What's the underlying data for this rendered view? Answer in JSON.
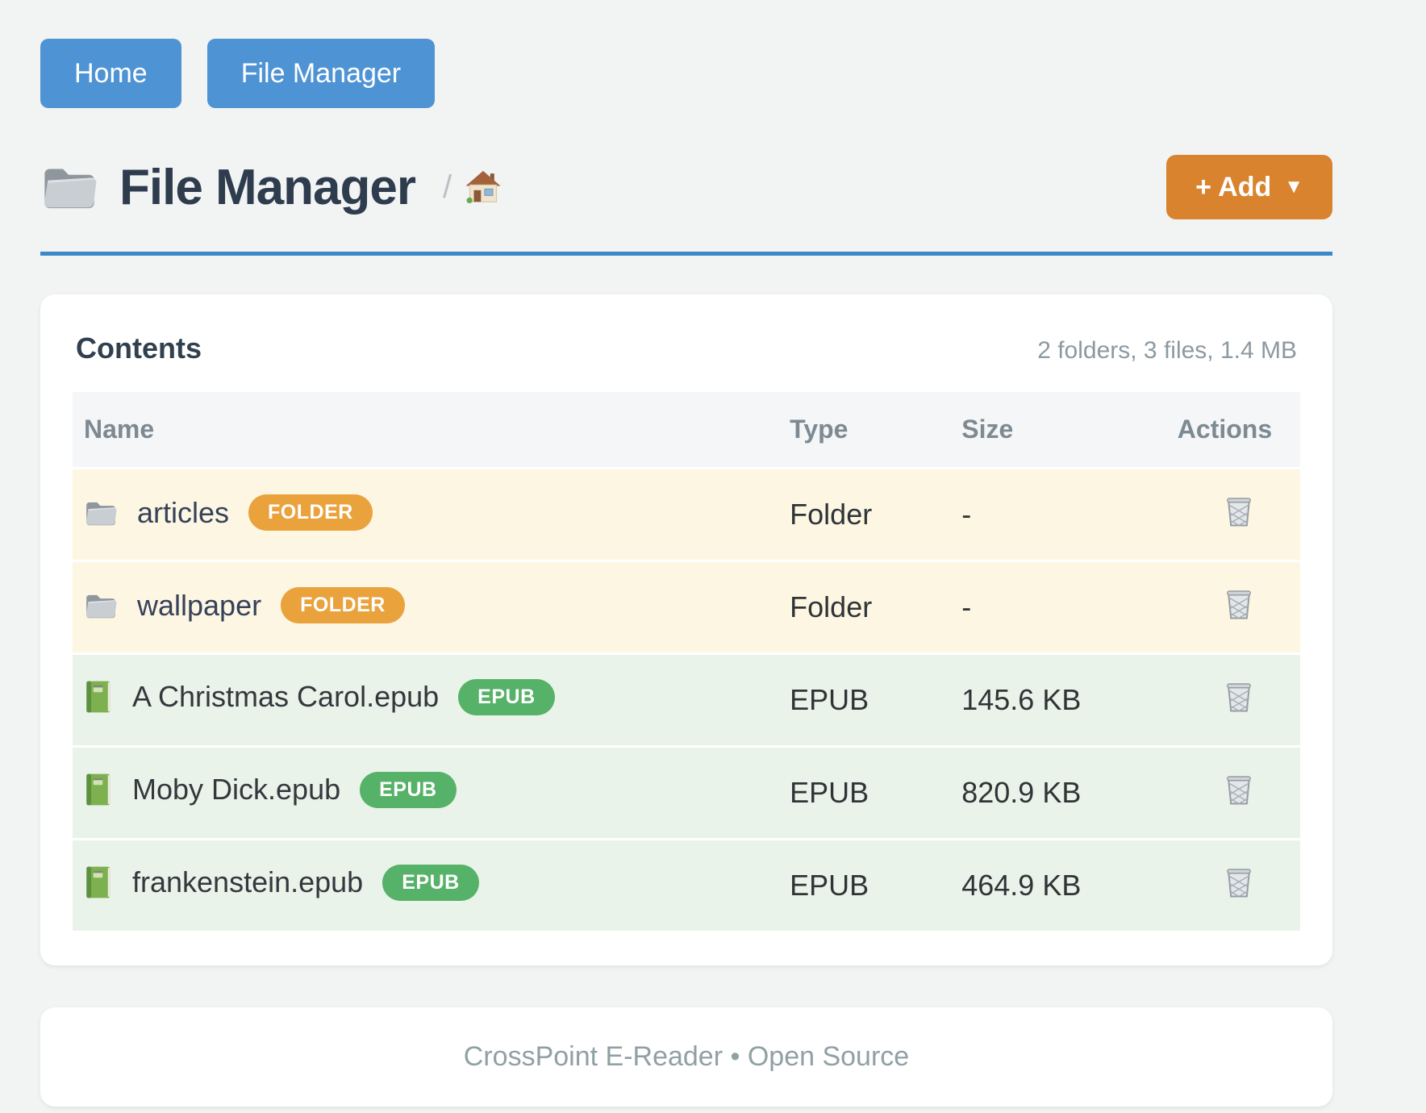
{
  "nav": {
    "buttons": [
      {
        "label": "Home"
      },
      {
        "label": "File Manager"
      }
    ]
  },
  "header": {
    "title": "File Manager",
    "breadcrumb_separator": "/",
    "add_button": {
      "label": "+ Add",
      "caret": "▼"
    }
  },
  "contents": {
    "heading": "Contents",
    "summary": "2 folders, 3 files, 1.4 MB",
    "table": {
      "columns": [
        "Name",
        "Type",
        "Size",
        "Actions"
      ],
      "rows": [
        {
          "name": "articles",
          "kind": "folder",
          "badge": "FOLDER",
          "type": "Folder",
          "size": "-"
        },
        {
          "name": "wallpaper",
          "kind": "folder",
          "badge": "FOLDER",
          "type": "Folder",
          "size": "-"
        },
        {
          "name": "A Christmas Carol.epub",
          "kind": "epub",
          "badge": "EPUB",
          "type": "EPUB",
          "size": "145.6 KB"
        },
        {
          "name": "Moby Dick.epub",
          "kind": "epub",
          "badge": "EPUB",
          "type": "EPUB",
          "size": "820.9 KB"
        },
        {
          "name": "frankenstein.epub",
          "kind": "epub",
          "badge": "EPUB",
          "type": "EPUB",
          "size": "464.9 KB"
        }
      ]
    }
  },
  "footer": {
    "text": "CrossPoint E-Reader • Open Source"
  },
  "icons": {
    "title_folder": "folder",
    "breadcrumb_home": "house",
    "row_folder": "folder",
    "row_epub": "green-book",
    "delete": "wastebasket",
    "add_caret": "▼"
  },
  "colors": {
    "page_background": "#f2f3f3",
    "nav_button_blue": "#4e93d3",
    "title_rule_blue": "#3e87c8",
    "add_button_orange": "#d9832f",
    "badge_folder_orange": "#eaa23c",
    "badge_epub_green": "#57b269",
    "row_folder_bg": "#fdf6e2",
    "row_epub_bg": "#e9f3e9",
    "table_header_bg": "#f4f6f8",
    "heading_text": "#31404f",
    "muted_text": "#8d99a0"
  }
}
